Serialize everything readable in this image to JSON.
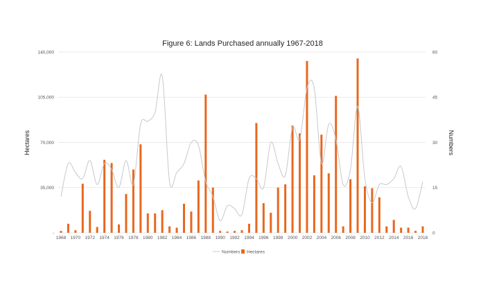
{
  "chart_data": {
    "type": "bar",
    "title": "Figure 6: Lands Purchased annually 1967-2018",
    "xlabel": "",
    "ylabel": "Hectares",
    "y2label": "Numbers",
    "x": [
      1968,
      1969,
      1970,
      1971,
      1972,
      1973,
      1974,
      1975,
      1976,
      1977,
      1978,
      1979,
      1980,
      1981,
      1982,
      1983,
      1984,
      1985,
      1986,
      1987,
      1988,
      1989,
      1990,
      1991,
      1992,
      1993,
      1994,
      1995,
      1996,
      1997,
      1998,
      1999,
      2000,
      2001,
      2002,
      2003,
      2004,
      2005,
      2006,
      2007,
      2008,
      2009,
      2010,
      2011,
      2012,
      2013,
      2014,
      2015,
      2016,
      2017,
      2018
    ],
    "x_tick_labels": [
      "1968",
      "1970",
      "1972",
      "1974",
      "1976",
      "1978",
      "1980",
      "1982",
      "1984",
      "1986",
      "1988",
      "1990",
      "1992",
      "1994",
      "1996",
      "1998",
      "2000",
      "2002",
      "2004",
      "2006",
      "2008",
      "2010",
      "2012",
      "2014",
      "2016",
      "2018"
    ],
    "ylim": [
      0,
      140000
    ],
    "y_ticks": [
      "-",
      "35,000",
      "70,000",
      "105,000",
      "140,000"
    ],
    "y2lim": [
      0,
      60
    ],
    "y2_ticks": [
      "0",
      "15",
      "30",
      "45",
      "60"
    ],
    "series": [
      {
        "name": "Hectares",
        "type": "bar",
        "axis": "left",
        "color": "#E8671E",
        "values": [
          1500,
          7000,
          2000,
          38000,
          17000,
          4500,
          56500,
          54000,
          6500,
          30000,
          49000,
          68500,
          15000,
          15000,
          17500,
          5000,
          4000,
          22500,
          16500,
          40500,
          107000,
          35000,
          1500,
          1000,
          1500,
          2000,
          7000,
          85000,
          23000,
          15500,
          35000,
          37500,
          83000,
          77000,
          133000,
          44500,
          76000,
          46000,
          106000,
          5000,
          41500,
          135000,
          36000,
          34500,
          27500,
          5000,
          10000,
          4000,
          4000,
          1500,
          5000
        ]
      },
      {
        "name": "Numbers",
        "type": "line",
        "axis": "right",
        "color": "#C8C8C8",
        "values": [
          12,
          23,
          20,
          18,
          24,
          16,
          23,
          21,
          15,
          24,
          16,
          36,
          37,
          40,
          52,
          17,
          20,
          23,
          30,
          29,
          17,
          12,
          4,
          9,
          8,
          6,
          18,
          18,
          15,
          30,
          23,
          19,
          35,
          31,
          48,
          48,
          23,
          36,
          31,
          16,
          21,
          42,
          18,
          10,
          16,
          16,
          18,
          22,
          12,
          8,
          17
        ]
      }
    ],
    "legend": [
      "Numbers",
      "Hectares"
    ],
    "legend_position": "bottom",
    "grid": true
  }
}
